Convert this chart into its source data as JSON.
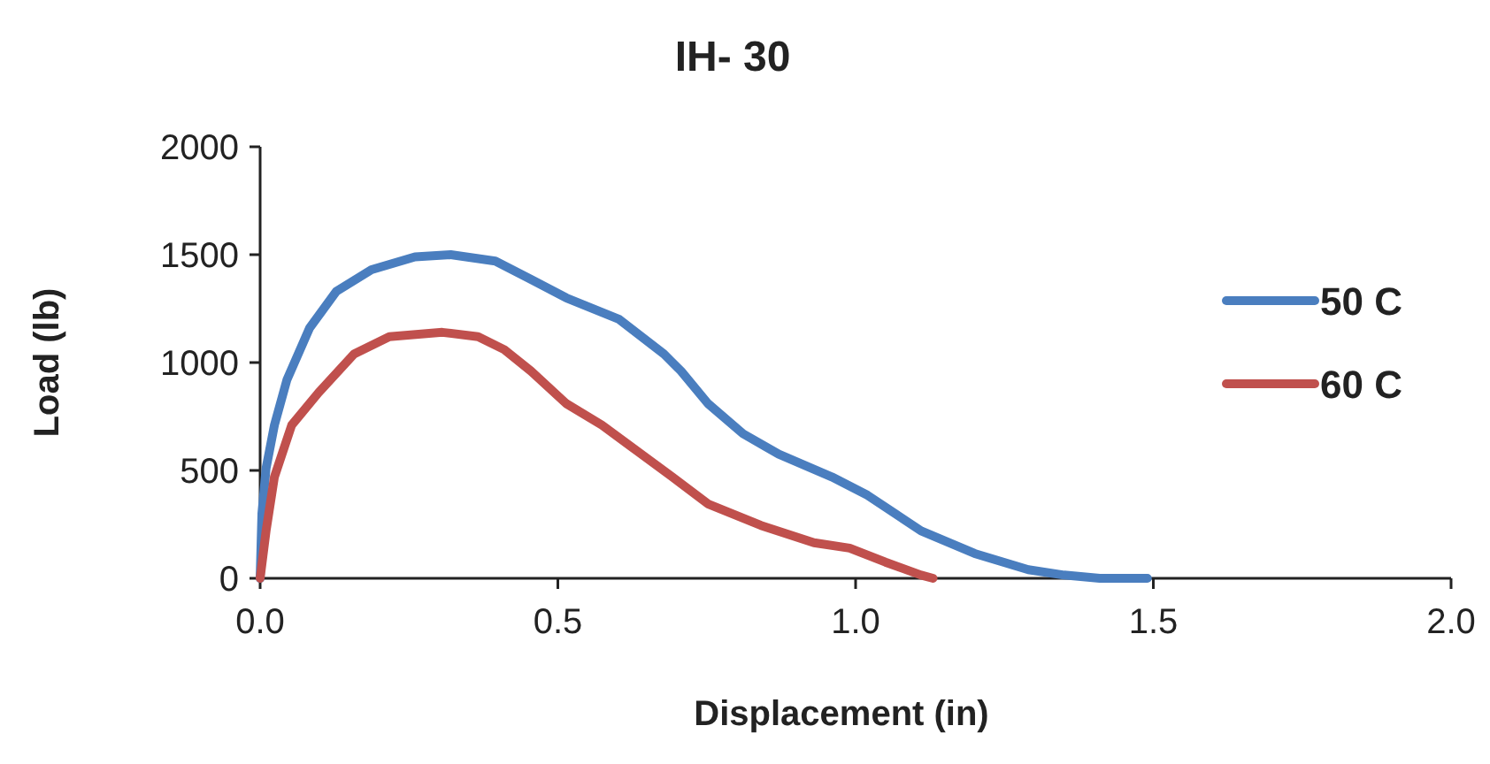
{
  "chart_data": {
    "type": "line",
    "title": "IH- 30",
    "xlabel": "Displacement (in)",
    "ylabel": "Load (lb)",
    "xlim": [
      0,
      2
    ],
    "xticks": [
      {
        "value": 0,
        "label": "0.0"
      },
      {
        "value": 0.5,
        "label": "0.5"
      },
      {
        "value": 1,
        "label": "1.0"
      },
      {
        "value": 1.5,
        "label": "1.5"
      },
      {
        "value": 2,
        "label": "2.0"
      }
    ],
    "ylim": [
      0,
      2000
    ],
    "yticks": [
      0,
      500,
      1000,
      1500,
      2000
    ],
    "grid": false,
    "legend": "right",
    "marker": "none",
    "line_style": "solid",
    "series": [
      {
        "name": "50 C",
        "color": "#4a7ebf",
        "x": [
          0,
          0.003,
          0.01,
          0.024,
          0.045,
          0.083,
          0.128,
          0.187,
          0.26,
          0.32,
          0.395,
          0.455,
          0.514,
          0.603,
          0.678,
          0.707,
          0.752,
          0.811,
          0.871,
          0.96,
          1.02,
          1.11,
          1.2,
          1.29,
          1.35,
          1.41,
          1.49
        ],
        "values": [
          0,
          300,
          510,
          710,
          920,
          1160,
          1330,
          1430,
          1490,
          1500,
          1470,
          1385,
          1300,
          1200,
          1040,
          960,
          810,
          670,
          575,
          470,
          385,
          220,
          115,
          40,
          15,
          0,
          0
        ]
      },
      {
        "name": "60 C",
        "color": "#c0504d",
        "x": [
          0,
          0.01,
          0.024,
          0.053,
          0.098,
          0.158,
          0.217,
          0.306,
          0.366,
          0.41,
          0.455,
          0.514,
          0.574,
          0.633,
          0.692,
          0.752,
          0.841,
          0.93,
          0.99,
          1.05,
          1.11,
          1.13
        ],
        "values": [
          0,
          220,
          470,
          710,
          860,
          1040,
          1120,
          1140,
          1120,
          1060,
          960,
          810,
          710,
          590,
          470,
          345,
          245,
          165,
          140,
          75,
          15,
          0
        ]
      }
    ]
  }
}
